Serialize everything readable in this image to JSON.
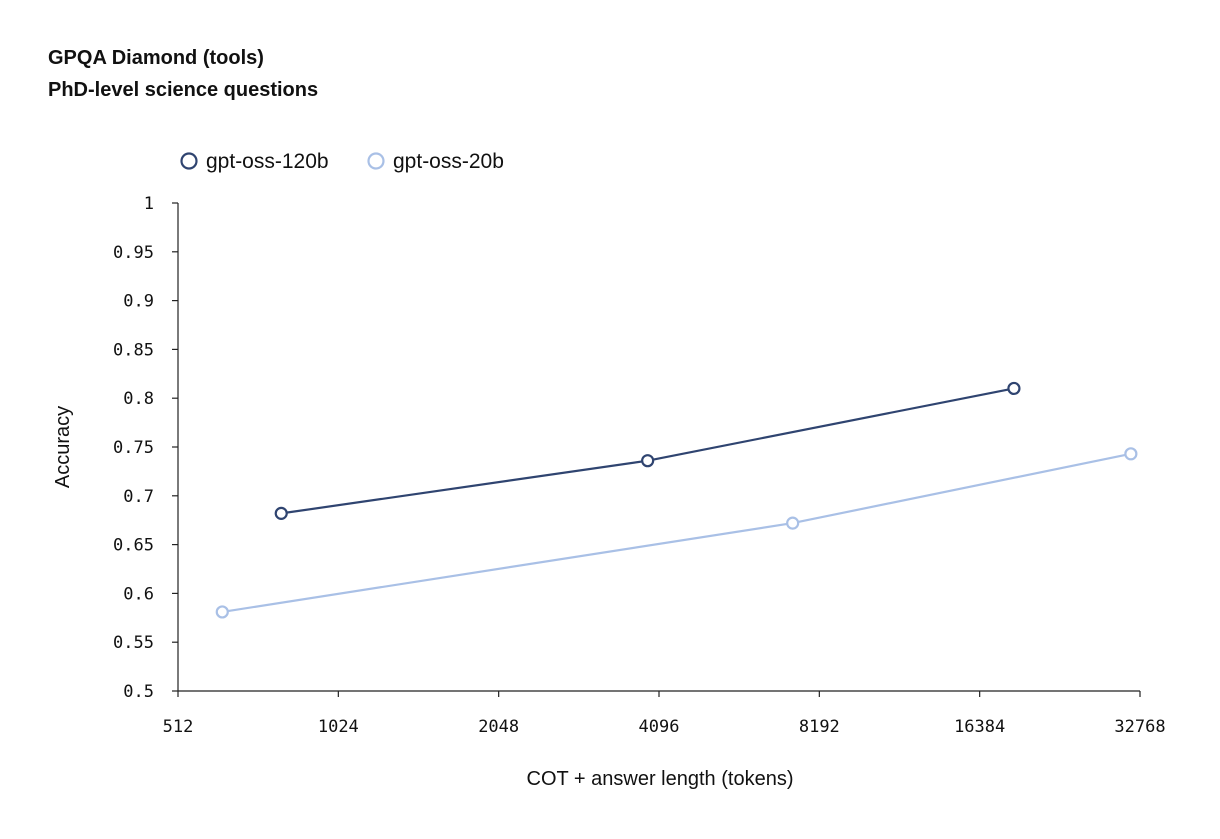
{
  "chart_data": {
    "type": "line",
    "title": "GPQA Diamond (tools)",
    "subtitle": "PhD-level science questions",
    "xlabel": "COT + answer length (tokens)",
    "ylabel": "Accuracy",
    "x_scale": "log2",
    "xlim": [
      512,
      32768
    ],
    "ylim": [
      0.5,
      1
    ],
    "x_ticks": [
      512,
      1024,
      2048,
      4096,
      8192,
      16384,
      32768
    ],
    "x_tick_labels": [
      "512",
      "1024",
      "2048",
      "4096",
      "8192",
      "16384",
      "32768"
    ],
    "y_ticks": [
      0.5,
      0.55,
      0.6,
      0.65,
      0.7,
      0.75,
      0.8,
      0.85,
      0.9,
      0.95,
      1
    ],
    "y_tick_labels": [
      "0.5",
      "0.55",
      "0.6",
      "0.65",
      "0.7",
      "0.75",
      "0.8",
      "0.85",
      "0.9",
      "0.95",
      "1"
    ],
    "grid": false,
    "legend_position": "top-left",
    "series": [
      {
        "name": "gpt-oss-120b",
        "color": "#2f4470",
        "points": [
          {
            "x": 800,
            "y": 0.682
          },
          {
            "x": 3900,
            "y": 0.736
          },
          {
            "x": 19000,
            "y": 0.81
          }
        ]
      },
      {
        "name": "gpt-oss-20b",
        "color": "#a9c0e6",
        "points": [
          {
            "x": 620,
            "y": 0.581
          },
          {
            "x": 7300,
            "y": 0.672
          },
          {
            "x": 31500,
            "y": 0.743
          }
        ]
      }
    ]
  }
}
